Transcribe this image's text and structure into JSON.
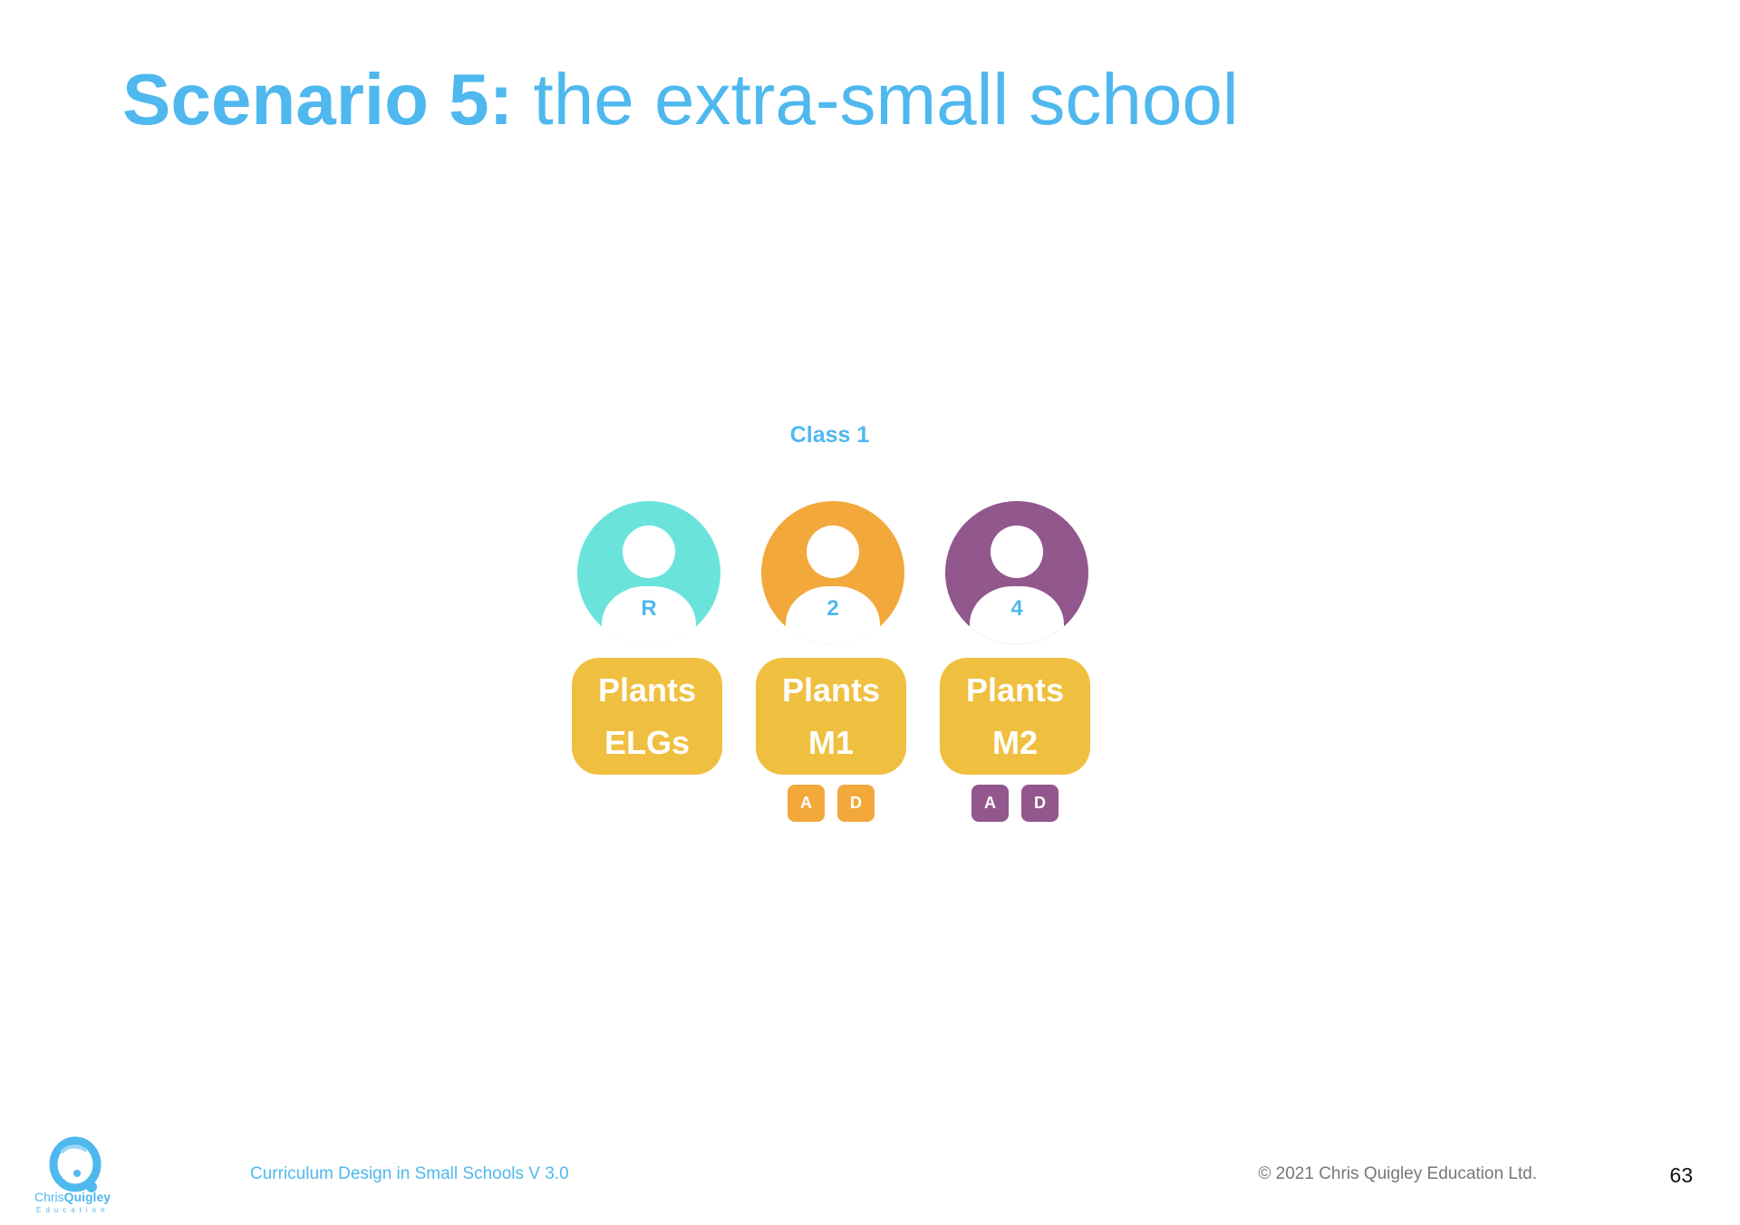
{
  "title": {
    "bold": "Scenario 5:",
    "rest": " the extra-small school"
  },
  "class_label": "Class 1",
  "colors": {
    "accent": "#4fb8ee",
    "topic_box": "#efbf3f"
  },
  "groups": [
    {
      "year": "R",
      "color": "#6ae4da",
      "topic_line1": "Plants",
      "topic_line2": "ELGs",
      "badges": []
    },
    {
      "year": "2",
      "color": "#f2a83b",
      "topic_line1": "Plants",
      "topic_line2": "M1",
      "badges": [
        "A",
        "D"
      ]
    },
    {
      "year": "4",
      "color": "#92578c",
      "topic_line1": "Plants",
      "topic_line2": "M2",
      "badges": [
        "A",
        "D"
      ]
    }
  ],
  "footer": {
    "doc_title": "Curriculum Design in Small Schools V 3.0",
    "copyright": "© 2021 Chris Quigley Education Ltd.",
    "page_number": "63"
  },
  "logo": {
    "name_first": "Chris",
    "name_second": "Quigley",
    "subtitle": "Education"
  }
}
